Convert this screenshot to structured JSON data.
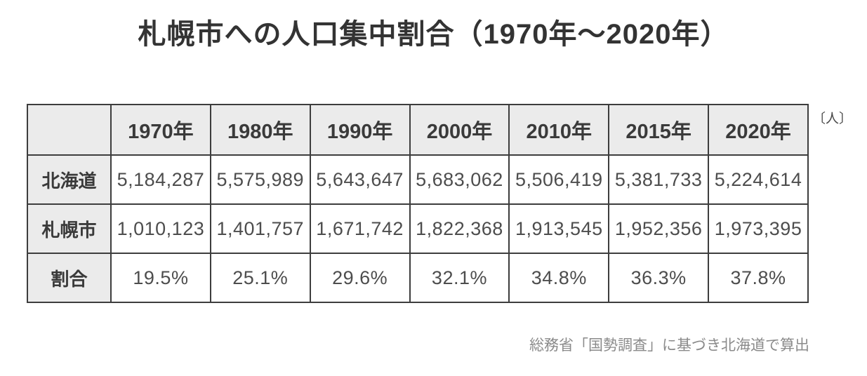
{
  "chart_data": {
    "type": "table",
    "title": "札幌市への人口集中割合（1970年〜2020年）",
    "unit": "〔人〕",
    "columns": [
      "1970年",
      "1980年",
      "1990年",
      "2000年",
      "2010年",
      "2015年",
      "2020年"
    ],
    "rows": [
      {
        "label": "北海道",
        "values": [
          "5,184,287",
          "5,575,989",
          "5,643,647",
          "5,683,062",
          "5,506,419",
          "5,381,733",
          "5,224,614"
        ]
      },
      {
        "label": "札幌市",
        "values": [
          "1,010,123",
          "1,401,757",
          "1,671,742",
          "1,822,368",
          "1,913,545",
          "1,952,356",
          "1,973,395"
        ]
      },
      {
        "label": "割合",
        "values": [
          "19.5%",
          "25.1%",
          "29.6%",
          "32.1%",
          "34.8%",
          "36.3%",
          "37.8%"
        ]
      }
    ],
    "source_note": "総務省「国勢調査」に基づき北海道で算出",
    "colors": {
      "border": "#3d3d3d",
      "header_bg": "#ebebeb",
      "header_text": "#3a3a3a",
      "number_text": "#4d4d4d",
      "title_text": "#333333",
      "note_text": "#8a8a8a"
    }
  }
}
